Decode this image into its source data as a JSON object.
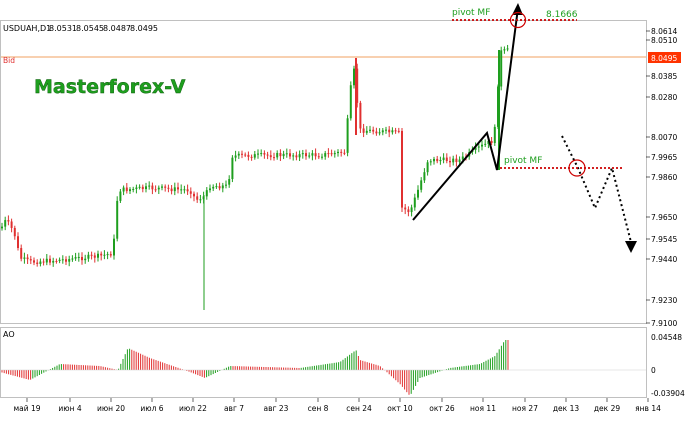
{
  "header": {
    "symbol": "USDUAH,D1",
    "o": "8.0531",
    "h": "8.0545",
    "l": "8.0487",
    "c": "8.0495"
  },
  "bid_label": "Bid",
  "watermark": "Masterforex-V",
  "annotations": {
    "pivot_top": "pivot MF",
    "pivot_top_value": "8.1666",
    "pivot_mid": "pivot MF"
  },
  "price_axis": {
    "ticks": [
      "8.0614",
      "8.0510",
      "8.0385",
      "8.0280",
      "8.0070",
      "7.9965",
      "7.9860",
      "7.9650",
      "7.9545",
      "7.9440",
      "7.9230",
      "7.9100"
    ],
    "current": "8.0495",
    "current_color": "#ff3300"
  },
  "ao": {
    "label": "AO",
    "max": "0.04548",
    "zero": "0",
    "min": "-0.03904",
    "up_color": "#1e9e1e",
    "down_color": "#e03030"
  },
  "time_axis": {
    "labels": [
      "май 19",
      "июн 4",
      "июн 20",
      "июл 6",
      "июл 22",
      "авг 7",
      "авг 23",
      "сен 8",
      "сен 24",
      "окт 10",
      "окт 26",
      "ноя 11",
      "ноя 27",
      "дек 13",
      "дек 29",
      "янв 14"
    ]
  },
  "colors": {
    "bull": "#1e9e1e",
    "bear": "#e03030",
    "bid_line": "#f0a060",
    "pivot": "#cc0000"
  }
}
